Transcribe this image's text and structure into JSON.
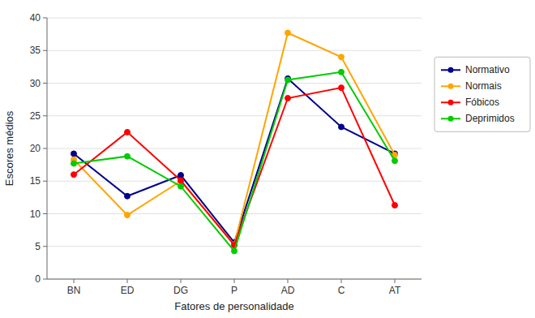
{
  "chart_data": {
    "type": "line",
    "categories": [
      "BN",
      "ED",
      "DG",
      "P",
      "AD",
      "C",
      "AT"
    ],
    "series": [
      {
        "name": "Normativo",
        "color": "#00008B",
        "marker": "circle",
        "values": [
          19.2,
          12.7,
          15.9,
          5.6,
          30.7,
          23.3,
          19.2
        ]
      },
      {
        "name": "Normais",
        "color": "#FFA500",
        "marker": "circle",
        "values": [
          18.3,
          9.8,
          15.0,
          5.3,
          37.7,
          34.0,
          19.0
        ]
      },
      {
        "name": "Fóbicos",
        "color": "#FF0000",
        "marker": "circle",
        "values": [
          16.0,
          22.5,
          15.1,
          5.2,
          27.7,
          29.3,
          11.3
        ]
      },
      {
        "name": "Deprimidos",
        "color": "#00CC00",
        "marker": "circle",
        "values": [
          17.7,
          18.8,
          14.2,
          4.3,
          30.5,
          31.7,
          18.1
        ]
      }
    ],
    "xlabel": "Fatores de personalidade",
    "ylabel": "Escores médios",
    "ylim": [
      0,
      40
    ],
    "yticks": [
      0,
      5,
      10,
      15,
      20,
      25,
      30,
      35,
      40
    ],
    "grid": true,
    "legend": "right"
  }
}
